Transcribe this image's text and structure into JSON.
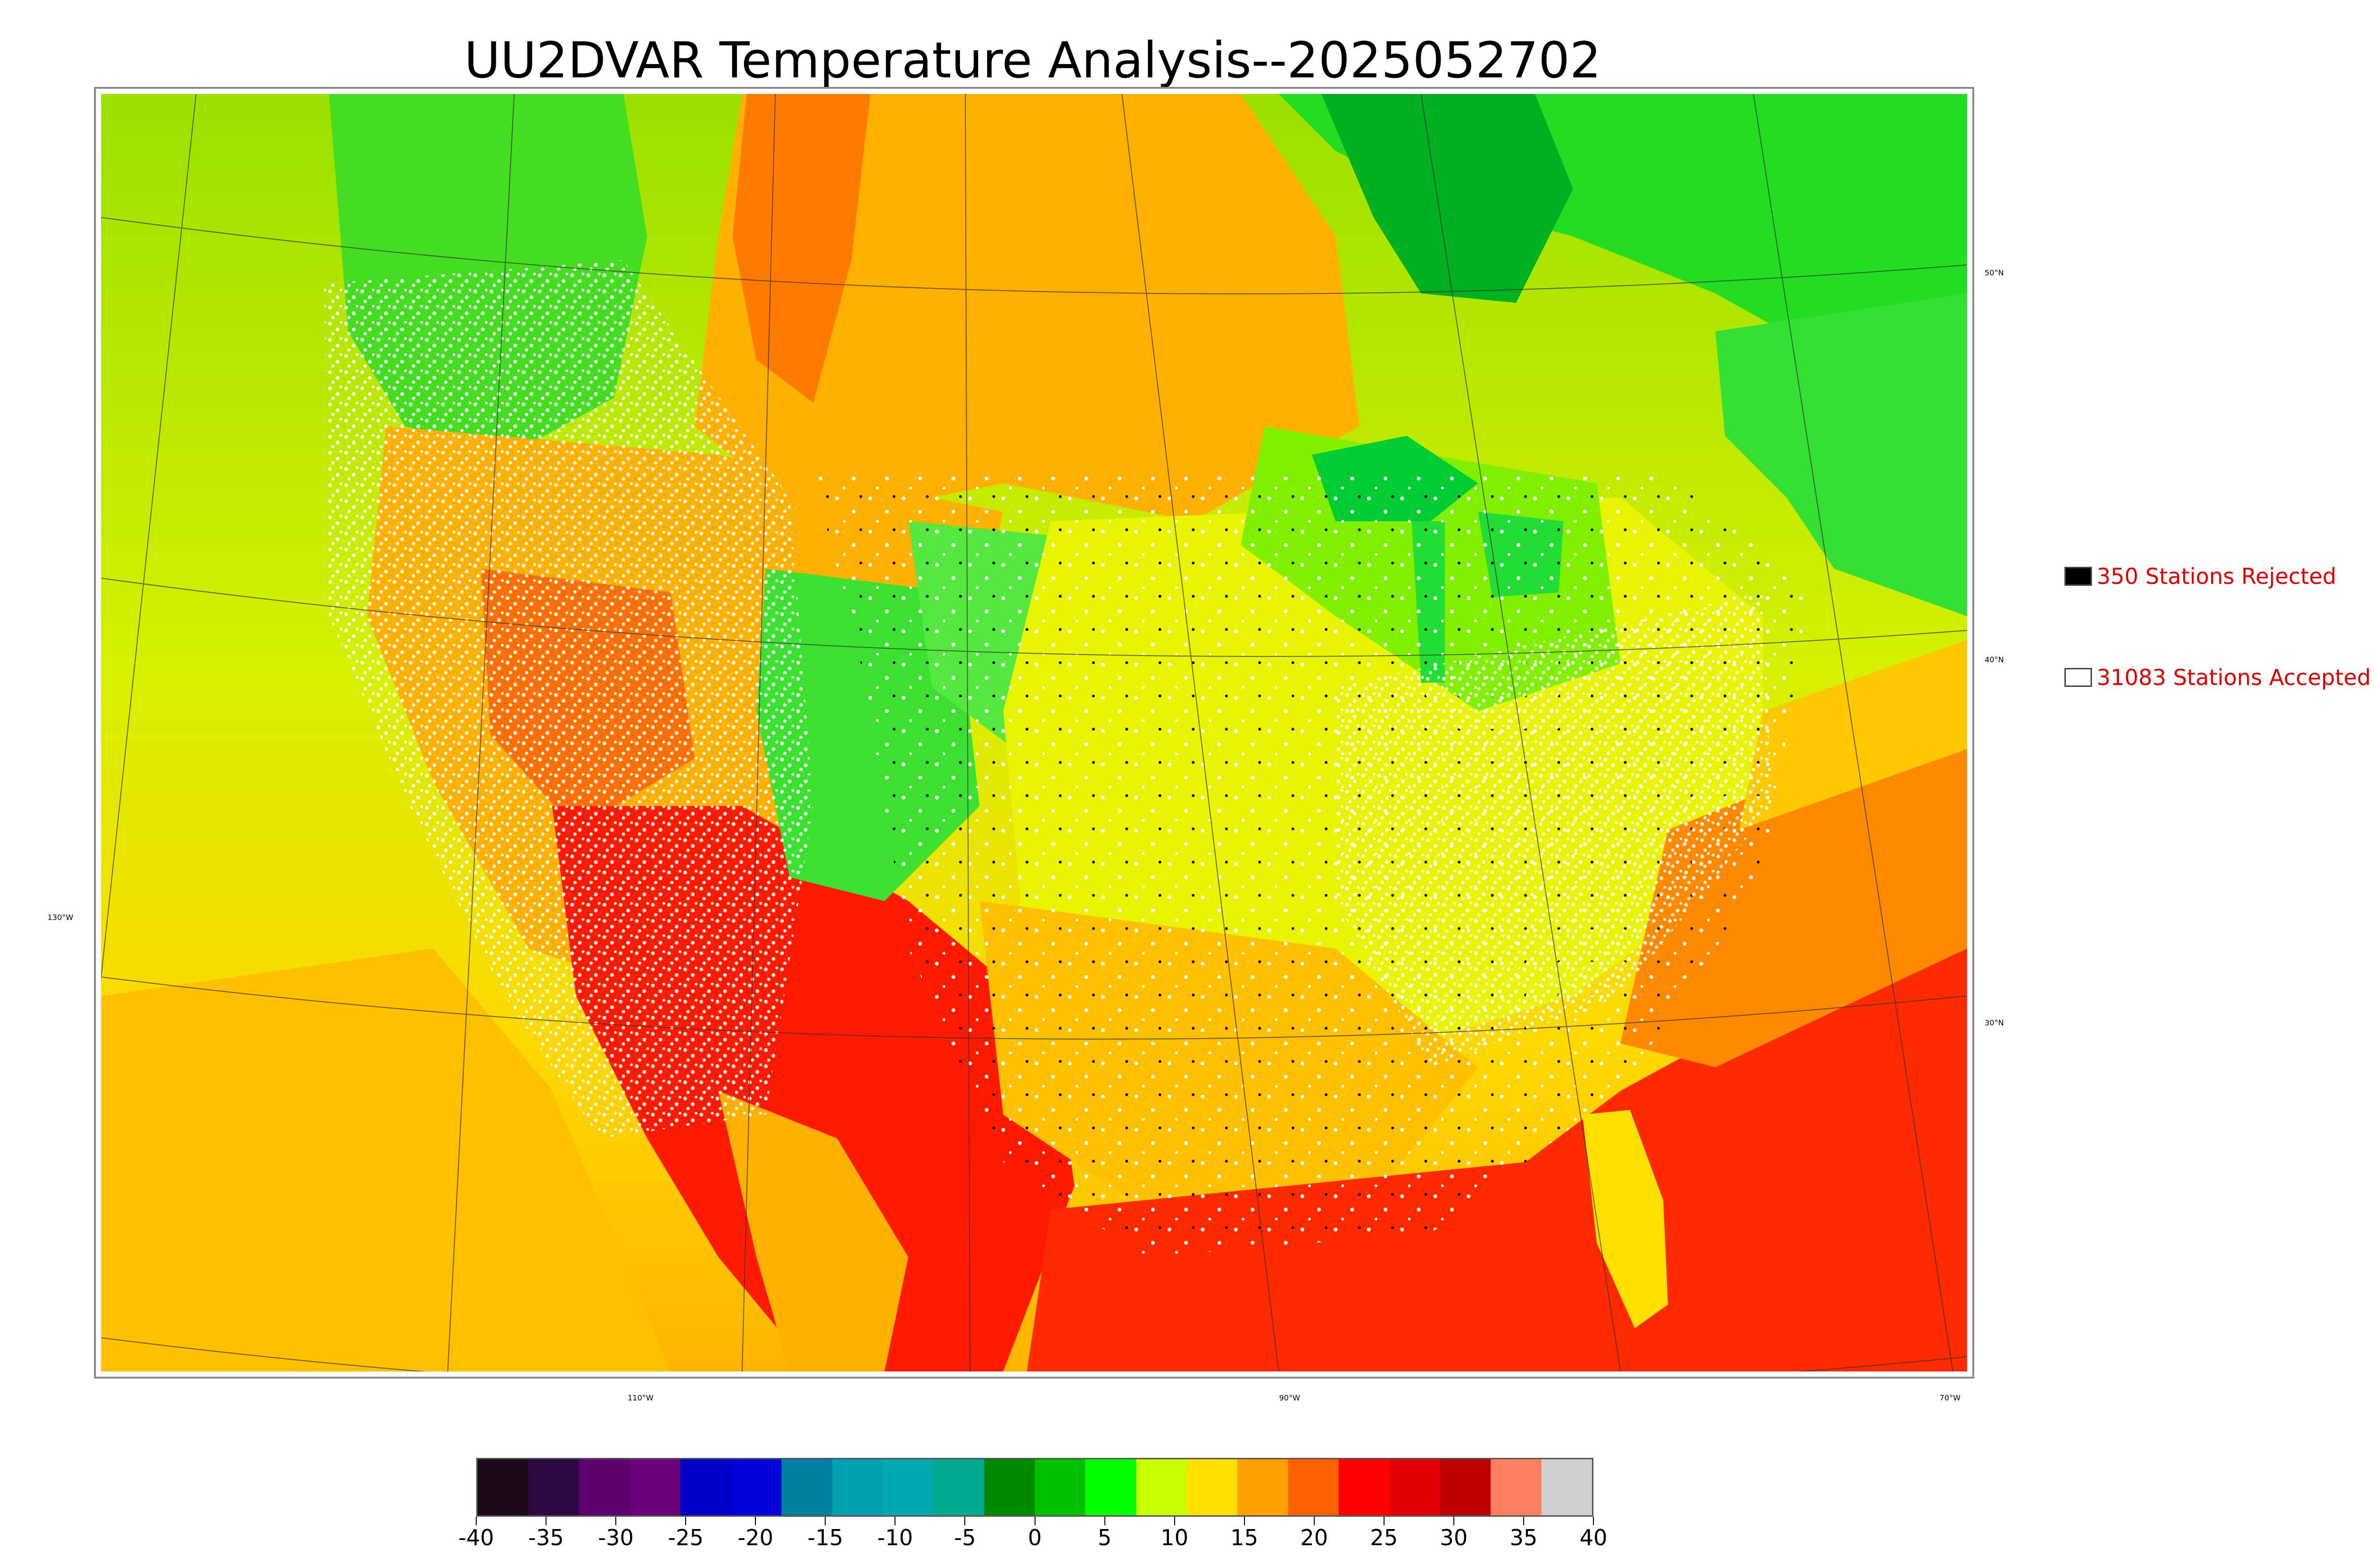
{
  "title": "UU2DVAR Temperature Analysis--2025052702",
  "legend": {
    "rejected": {
      "label": "350 Stations Rejected",
      "swatch_color": "#000000"
    },
    "accepted": {
      "label": "31083 Stations Accepted",
      "swatch_color": "#ffffff"
    }
  },
  "graticule": {
    "lat_labels": [
      "50°N",
      "40°N",
      "30°N"
    ],
    "lon_labels": [
      "130°W",
      "110°W",
      "90°W",
      "70°W"
    ]
  },
  "colorbar": {
    "ticks": [
      "-40",
      "-35",
      "-30",
      "-25",
      "-20",
      "-15",
      "-10",
      "-5",
      "0",
      "5",
      "10",
      "15",
      "20",
      "25",
      "30",
      "35",
      "40"
    ],
    "range": [
      -40,
      40
    ],
    "colors": [
      "#1a0a1a",
      "#2a0a40",
      "#5c006e",
      "#6a0078",
      "#0000c8",
      "#0000d8",
      "#0080a0",
      "#00a0b0",
      "#00a8b0",
      "#00a890",
      "#008800",
      "#00c000",
      "#00ff00",
      "#c8ff00",
      "#ffe000",
      "#ffa000",
      "#ff6000",
      "#ff0000",
      "#e00000",
      "#c00000",
      "#ff8060",
      "#d0d0d0"
    ]
  },
  "colors": {
    "frame": "#8a8a8a",
    "legend_text": "#e00000",
    "ocean_warm": "#ff2a00",
    "ocean_mild": "#ffcc00",
    "land_cool": "#22dd22"
  }
}
